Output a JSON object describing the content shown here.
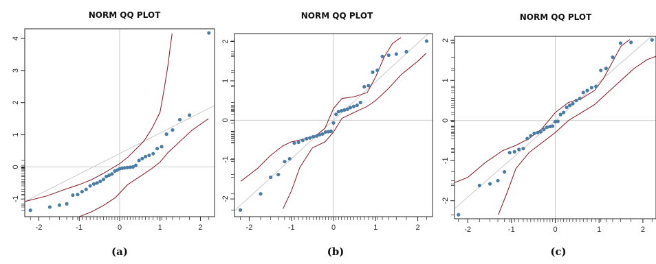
{
  "panels": [
    {
      "caption": "(a)"
    },
    {
      "caption": "(b)"
    },
    {
      "caption": "(c)"
    }
  ],
  "colors": {
    "points": "#4a7ca3",
    "envelope": "#8b2630",
    "reference": "#c9c9c9",
    "cross": "#c9c9c9"
  },
  "chart_data": [
    {
      "type": "scatter",
      "title": "NORM QQ PLOT",
      "xlabel": "",
      "ylabel": "",
      "xlim": [
        -2.35,
        2.35
      ],
      "ylim": [
        -1.55,
        4.3
      ],
      "xticks": [
        -2,
        -1,
        0,
        1,
        2
      ],
      "yticks": [
        -1,
        0,
        1,
        2,
        3,
        4
      ],
      "grid": false,
      "reference_line": {
        "x": [
          -2.35,
          2.35
        ],
        "y": [
          -1.08,
          1.91
        ]
      },
      "points": {
        "x": [
          -2.21,
          -1.73,
          -1.49,
          -1.31,
          -1.16,
          -1.04,
          -0.93,
          -0.83,
          -0.73,
          -0.64,
          -0.56,
          -0.48,
          -0.4,
          -0.33,
          -0.26,
          -0.19,
          -0.12,
          -0.06,
          0.0,
          0.06,
          0.12,
          0.19,
          0.26,
          0.33,
          0.4,
          0.48,
          0.56,
          0.64,
          0.73,
          0.83,
          0.93,
          1.04,
          1.16,
          1.31,
          1.49,
          1.73,
          2.21
        ],
        "y": [
          -1.35,
          -1.25,
          -1.19,
          -1.15,
          -0.88,
          -0.86,
          -0.77,
          -0.7,
          -0.59,
          -0.53,
          -0.5,
          -0.45,
          -0.39,
          -0.3,
          -0.26,
          -0.22,
          -0.13,
          -0.1,
          -0.06,
          -0.04,
          -0.03,
          -0.02,
          -0.01,
          0.0,
          0.05,
          0.2,
          0.26,
          0.32,
          0.36,
          0.41,
          0.57,
          0.63,
          1.02,
          1.15,
          1.47,
          1.61,
          4.17
        ]
      },
      "envelope_upper": {
        "x": [
          -2.35,
          -1.8,
          -1.4,
          -1.0,
          -0.7,
          -0.4,
          -0.2,
          0.0,
          0.2,
          0.4,
          0.6,
          0.8,
          1.0,
          1.1,
          1.2,
          1.25,
          1.3
        ],
        "y": [
          -1.08,
          -0.9,
          -0.72,
          -0.55,
          -0.4,
          -0.2,
          -0.05,
          0.1,
          0.3,
          0.55,
          0.8,
          1.2,
          1.7,
          2.4,
          3.2,
          3.7,
          4.15
        ]
      },
      "envelope_lower": {
        "x": [
          -1.0,
          -0.7,
          -0.4,
          -0.1,
          0.2,
          0.5,
          0.8,
          1.0,
          1.2,
          1.5,
          1.8,
          2.2
        ],
        "y": [
          -1.55,
          -1.4,
          -1.2,
          -0.95,
          -0.55,
          -0.3,
          -0.05,
          0.15,
          0.45,
          0.8,
          1.15,
          1.5
        ]
      },
      "rug_y": [
        -1.35,
        -1.25,
        -1.19,
        -1.15,
        -0.88,
        -0.86,
        -0.77,
        -0.7,
        -0.59,
        -0.53,
        -0.5,
        -0.45,
        -0.39,
        -0.3,
        -0.26,
        -0.22,
        -0.13,
        -0.1,
        -0.06,
        -0.04,
        -0.03,
        -0.02,
        -0.01,
        0.0,
        0.05,
        0.2
      ]
    },
    {
      "type": "scatter",
      "title": "NORM QQ PLOT",
      "xlabel": "",
      "ylabel": "",
      "xlim": [
        -2.35,
        2.35
      ],
      "ylim": [
        -2.45,
        2.2
      ],
      "xticks": [
        -2,
        -1,
        0,
        1,
        2
      ],
      "yticks": [
        -2,
        -1,
        0,
        1,
        2
      ],
      "grid": false,
      "reference_line": {
        "x": [
          -2.35,
          2.35
        ],
        "y": [
          -2.3,
          2.3
        ]
      },
      "points": {
        "x": [
          -2.21,
          -1.73,
          -1.49,
          -1.31,
          -1.16,
          -1.04,
          -0.93,
          -0.83,
          -0.73,
          -0.64,
          -0.56,
          -0.48,
          -0.4,
          -0.33,
          -0.26,
          -0.19,
          -0.12,
          -0.06,
          0.0,
          0.06,
          0.12,
          0.19,
          0.26,
          0.33,
          0.4,
          0.48,
          0.56,
          0.64,
          0.73,
          0.83,
          0.93,
          1.04,
          1.16,
          1.31,
          1.49,
          1.73,
          2.21
        ],
        "y": [
          -2.28,
          -1.87,
          -1.45,
          -1.38,
          -1.05,
          -0.98,
          -0.58,
          -0.56,
          -0.51,
          -0.47,
          -0.45,
          -0.42,
          -0.4,
          -0.37,
          -0.35,
          -0.3,
          -0.29,
          -0.28,
          -0.07,
          0.15,
          0.22,
          0.24,
          0.26,
          0.28,
          0.32,
          0.35,
          0.38,
          0.45,
          0.85,
          0.88,
          1.22,
          1.27,
          1.62,
          1.65,
          1.68,
          1.74,
          2.01
        ]
      },
      "envelope_upper": {
        "x": [
          -2.2,
          -1.8,
          -1.5,
          -1.2,
          -1.0,
          -0.7,
          -0.4,
          -0.2,
          0.0,
          0.2,
          0.5,
          0.8,
          1.0,
          1.2,
          1.4,
          1.6
        ],
        "y": [
          -1.55,
          -1.22,
          -0.9,
          -0.65,
          -0.55,
          -0.48,
          -0.38,
          -0.2,
          0.3,
          0.55,
          0.6,
          0.7,
          1.1,
          1.6,
          1.95,
          2.1
        ]
      },
      "envelope_lower": {
        "x": [
          -1.2,
          -1.0,
          -0.8,
          -0.5,
          -0.2,
          0.0,
          0.2,
          0.5,
          0.8,
          1.0,
          1.3,
          1.6,
          2.0,
          2.2
        ],
        "y": [
          -2.25,
          -1.8,
          -1.2,
          -0.7,
          -0.55,
          -0.3,
          0.05,
          0.2,
          0.35,
          0.5,
          0.8,
          1.15,
          1.5,
          1.7
        ]
      },
      "rug_y": [
        -2.28,
        -1.87,
        -1.45,
        -1.38,
        -1.05,
        -0.98,
        -0.58,
        -0.56,
        -0.51,
        -0.47,
        -0.45,
        -0.42,
        -0.4,
        -0.37,
        -0.35,
        -0.3,
        -0.29,
        -0.28,
        -0.07,
        0.15,
        0.22,
        0.24,
        0.26,
        0.28,
        0.32,
        0.35,
        0.38,
        0.45,
        0.85,
        0.88,
        1.22,
        1.27,
        1.62,
        1.65,
        1.68,
        1.74,
        2.01
      ]
    },
    {
      "type": "scatter",
      "title": "NORM QQ PLOT",
      "xlabel": "",
      "ylabel": "",
      "xlim": [
        -2.3,
        2.3
      ],
      "ylim": [
        -2.45,
        2.1
      ],
      "xticks": [
        -2,
        -1,
        0,
        1,
        2
      ],
      "yticks": [
        -2,
        -1,
        0,
        1,
        2
      ],
      "grid": false,
      "reference_line": {
        "x": [
          -2.3,
          2.3
        ],
        "y": [
          -2.2,
          2.2
        ]
      },
      "points": {
        "x": [
          -2.21,
          -1.73,
          -1.49,
          -1.31,
          -1.16,
          -1.04,
          -0.93,
          -0.83,
          -0.73,
          -0.64,
          -0.56,
          -0.48,
          -0.4,
          -0.33,
          -0.26,
          -0.19,
          -0.12,
          -0.06,
          0.0,
          0.06,
          0.12,
          0.19,
          0.26,
          0.33,
          0.4,
          0.48,
          0.56,
          0.64,
          0.73,
          0.83,
          0.93,
          1.04,
          1.16,
          1.31,
          1.49,
          1.73,
          2.21
        ],
        "y": [
          -2.35,
          -1.62,
          -1.58,
          -1.5,
          -1.28,
          -0.8,
          -0.78,
          -0.72,
          -0.7,
          -0.45,
          -0.38,
          -0.32,
          -0.3,
          -0.28,
          -0.22,
          -0.17,
          -0.15,
          -0.14,
          -0.03,
          -0.02,
          0.15,
          0.2,
          0.33,
          0.38,
          0.42,
          0.5,
          0.55,
          0.7,
          0.75,
          0.82,
          0.85,
          1.25,
          1.3,
          1.58,
          1.93,
          1.95,
          2.01
        ]
      },
      "envelope_upper": {
        "x": [
          -2.3,
          -2.0,
          -1.6,
          -1.2,
          -0.9,
          -0.6,
          -0.3,
          0.0,
          0.3,
          0.6,
          0.9,
          1.1,
          1.3,
          1.5,
          1.7
        ],
        "y": [
          -1.55,
          -1.42,
          -1.05,
          -0.75,
          -0.62,
          -0.45,
          -0.2,
          0.2,
          0.45,
          0.55,
          0.75,
          1.05,
          1.45,
          1.85,
          2.02
        ]
      },
      "envelope_lower": {
        "x": [
          -1.3,
          -1.1,
          -0.9,
          -0.6,
          -0.3,
          0.0,
          0.3,
          0.6,
          0.9,
          1.2,
          1.5,
          1.8,
          2.1,
          2.3
        ],
        "y": [
          -2.35,
          -1.8,
          -1.2,
          -0.8,
          -0.55,
          -0.3,
          0.0,
          0.2,
          0.4,
          0.7,
          1.0,
          1.3,
          1.52,
          1.6
        ]
      },
      "rug_y": [
        -2.35,
        -1.62,
        -1.58,
        -1.5,
        -1.28,
        -0.8,
        -0.78,
        -0.72,
        -0.7,
        -0.45,
        -0.38,
        -0.32,
        -0.3,
        -0.28,
        -0.22,
        -0.17,
        -0.15,
        -0.14,
        -0.03,
        -0.02,
        0.15,
        0.2,
        0.33,
        0.38,
        0.42,
        0.5,
        0.55,
        0.7,
        0.75,
        0.82,
        0.85,
        1.25,
        1.3,
        1.58,
        1.93,
        1.95,
        2.01
      ]
    }
  ]
}
